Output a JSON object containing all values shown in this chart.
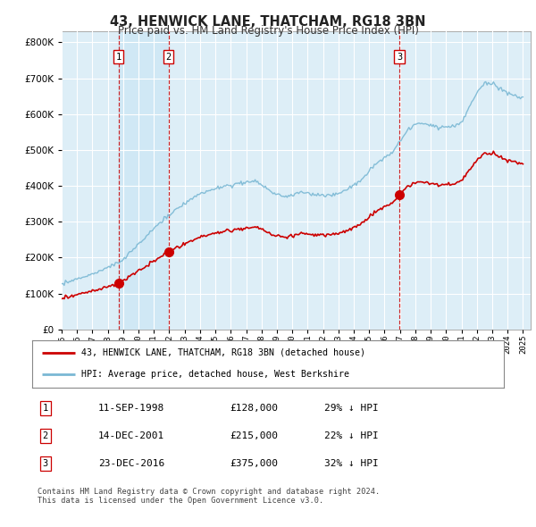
{
  "title": "43, HENWICK LANE, THATCHAM, RG18 3BN",
  "subtitle": "Price paid vs. HM Land Registry's House Price Index (HPI)",
  "hpi_color": "#7ab8d4",
  "price_color": "#cc0000",
  "vline_color": "#cc0000",
  "shade_color": "#d0e8f5",
  "background_color": "#ffffff",
  "plot_bg_color": "#ddeef7",
  "grid_color": "#ffffff",
  "purchases": [
    {
      "label": "1",
      "date_num": 1998.69,
      "price": 128000
    },
    {
      "label": "2",
      "date_num": 2001.95,
      "price": 215000
    },
    {
      "label": "3",
      "date_num": 2016.97,
      "price": 375000
    }
  ],
  "legend_entries": [
    "43, HENWICK LANE, THATCHAM, RG18 3BN (detached house)",
    "HPI: Average price, detached house, West Berkshire"
  ],
  "table_rows": [
    {
      "num": "1",
      "date": "11-SEP-1998",
      "price": "£128,000",
      "hpi": "29% ↓ HPI"
    },
    {
      "num": "2",
      "date": "14-DEC-2001",
      "price": "£215,000",
      "hpi": "22% ↓ HPI"
    },
    {
      "num": "3",
      "date": "23-DEC-2016",
      "price": "£375,000",
      "hpi": "32% ↓ HPI"
    }
  ],
  "footnote": "Contains HM Land Registry data © Crown copyright and database right 2024.\nThis data is licensed under the Open Government Licence v3.0.",
  "ylim": [
    0,
    830000
  ],
  "xlim_start": 1995.0,
  "xlim_end": 2025.5
}
